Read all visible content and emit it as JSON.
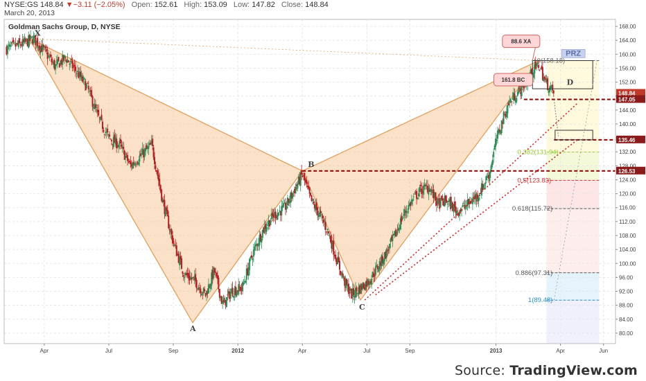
{
  "header": {
    "symbol": "NYSE:GS",
    "last": "148.84",
    "change": "−3.11 (−2.05%)",
    "open_label": "Open:",
    "open": "152.61",
    "high_label": "High:",
    "high": "153.09",
    "low_label": "Low:",
    "low": "147.82",
    "close_label": "Close:",
    "close": "148.84",
    "date": "March 20, 2013"
  },
  "source": {
    "prefix": "Source: ",
    "brand": "TradingView.com"
  },
  "chart_data": {
    "type": "candlestick",
    "title": "Goldman Sachs Group, D, NYSE",
    "x_axis": {
      "ticks": [
        {
          "t": 1.3,
          "label": "Apr"
        },
        {
          "t": 4.3,
          "label": "Jul"
        },
        {
          "t": 7.3,
          "label": "Sep"
        },
        {
          "t": 10.3,
          "label": "2012",
          "bold": true
        },
        {
          "t": 13.3,
          "label": "Apr"
        },
        {
          "t": 16.3,
          "label": "Jul"
        },
        {
          "t": 18.3,
          "label": "Sep"
        },
        {
          "t": 22.3,
          "label": "2013",
          "bold": true
        },
        {
          "t": 25.3,
          "label": "Apr"
        },
        {
          "t": 27.3,
          "label": "Jun"
        }
      ],
      "tmin": -0.5,
      "tmax": 27.6
    },
    "y_axis": {
      "min": 77,
      "max": 170,
      "ticks": [
        80,
        84,
        88,
        92,
        96,
        100,
        104,
        108,
        112,
        116,
        120,
        124,
        128,
        132,
        136,
        140,
        144,
        148,
        152,
        156,
        160,
        164,
        168
      ],
      "decimals": 2,
      "side": "right"
    },
    "price_path": [
      [
        -0.5,
        161.5
      ],
      [
        0.3,
        163
      ],
      [
        0.8,
        164.5
      ],
      [
        1.3,
        161
      ],
      [
        1.8,
        156.5
      ],
      [
        2.3,
        159
      ],
      [
        2.8,
        155
      ],
      [
        3.3,
        150.5
      ],
      [
        3.8,
        142
      ],
      [
        4.3,
        136
      ],
      [
        4.8,
        134
      ],
      [
        5.3,
        128
      ],
      [
        5.8,
        131
      ],
      [
        6.3,
        134
      ],
      [
        6.8,
        118
      ],
      [
        7.3,
        106
      ],
      [
        7.8,
        97
      ],
      [
        8.3,
        95
      ],
      [
        8.8,
        91
      ],
      [
        9.2,
        98
      ],
      [
        9.6,
        88
      ],
      [
        10.0,
        92
      ],
      [
        10.5,
        93
      ],
      [
        11.0,
        103
      ],
      [
        11.5,
        110
      ],
      [
        12.0,
        114
      ],
      [
        12.5,
        116
      ],
      [
        13.0,
        122
      ],
      [
        13.3,
        125.5
      ],
      [
        13.7,
        118
      ],
      [
        14.1,
        114
      ],
      [
        14.5,
        109
      ],
      [
        14.9,
        101
      ],
      [
        15.3,
        94
      ],
      [
        15.6,
        91
      ],
      [
        16.0,
        93
      ],
      [
        16.4,
        95
      ],
      [
        16.8,
        99
      ],
      [
        17.2,
        103
      ],
      [
        17.6,
        108
      ],
      [
        18.0,
        114
      ],
      [
        18.4,
        118
      ],
      [
        18.8,
        121
      ],
      [
        19.2,
        122
      ],
      [
        19.6,
        117
      ],
      [
        20.0,
        118
      ],
      [
        20.5,
        115
      ],
      [
        21.0,
        117
      ],
      [
        21.5,
        120
      ],
      [
        22.0,
        126
      ],
      [
        22.3,
        135
      ],
      [
        22.6,
        141
      ],
      [
        22.9,
        146
      ],
      [
        23.3,
        149
      ],
      [
        23.7,
        152
      ],
      [
        24.0,
        155
      ],
      [
        24.3,
        157
      ],
      [
        24.6,
        152
      ],
      [
        25.0,
        148.84
      ]
    ],
    "pattern": {
      "points": [
        {
          "label": "X",
          "t": 0.6,
          "price": 164.5
        },
        {
          "label": "A",
          "t": 8.2,
          "price": 83
        },
        {
          "label": "B",
          "t": 13.3,
          "price": 126.53
        },
        {
          "label": "C",
          "t": 16.0,
          "price": 89.5
        },
        {
          "label": "D",
          "t": 24.3,
          "price": 158.18
        }
      ],
      "callouts": [
        {
          "text": "88.6 XA"
        },
        {
          "text": "161.8 BC"
        }
      ],
      "prz_label": "PRZ"
    },
    "levels": [
      {
        "price": 147.05,
        "label": "147.05",
        "style": "dashed"
      },
      {
        "price": 135.46,
        "label": "135.46",
        "style": "dashed"
      },
      {
        "price": 126.53,
        "label": "126.53",
        "style": "dashed"
      }
    ],
    "last_price_label": "148.84",
    "fib_levels": [
      {
        "ratio": "0",
        "price": 158.18,
        "label": "0(158.18)"
      },
      {
        "ratio": "0.382",
        "price": 131.94,
        "label": "0.382(131.94)"
      },
      {
        "ratio": "0.5",
        "price": 123.83,
        "label": "0.5(123.83)"
      },
      {
        "ratio": "0.618",
        "price": 115.72,
        "label": "0.618(115.72)"
      },
      {
        "ratio": "0.886",
        "price": 97.31,
        "label": "0.886(97.31)"
      },
      {
        "ratio": "1",
        "price": 89.48,
        "label": "1(89.48)"
      }
    ],
    "colors": {
      "up": "#2e8b57",
      "down": "#b22222",
      "pattern_fill": "#f7c89a",
      "pattern_line": "#e0a060",
      "level": "#8b0000",
      "trend": "#cc2222"
    }
  }
}
